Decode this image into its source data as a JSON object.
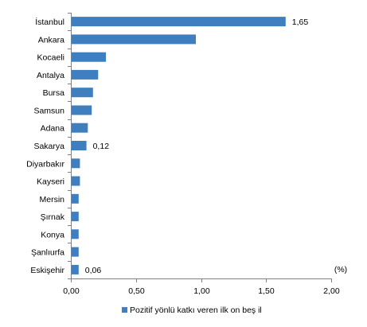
{
  "chart_data": {
    "type": "bar",
    "orientation": "horizontal",
    "categories": [
      "İstanbul",
      "Ankara",
      "Kocaeli",
      "Antalya",
      "Bursa",
      "Samsun",
      "Adana",
      "Sakarya",
      "Diyarbakır",
      "Kayseri",
      "Mersin",
      "Şırnak",
      "Konya",
      "Şanlıurfa",
      "Eskişehir"
    ],
    "series": [
      {
        "name": "Pozitif yönlü katkı veren ilk on beş il",
        "values": [
          1.65,
          0.96,
          0.27,
          0.21,
          0.17,
          0.16,
          0.13,
          0.12,
          0.07,
          0.07,
          0.06,
          0.06,
          0.06,
          0.06,
          0.06
        ],
        "color": "#3f7fbf"
      }
    ],
    "data_labels": [
      {
        "category": "İstanbul",
        "text": "1,65"
      },
      {
        "category": "Sakarya",
        "text": "0,12"
      },
      {
        "category": "Eskişehir",
        "text": "0,06"
      }
    ],
    "xlim": [
      0,
      2
    ],
    "xticks": [
      0,
      0.5,
      1,
      1.5,
      2
    ],
    "xtick_labels": [
      "0,00",
      "0,50",
      "1,00",
      "1,50",
      "2,00"
    ],
    "unit_label": "(%)",
    "legend_position": "bottom",
    "grid": false,
    "title": "",
    "xlabel": "",
    "ylabel": ""
  }
}
